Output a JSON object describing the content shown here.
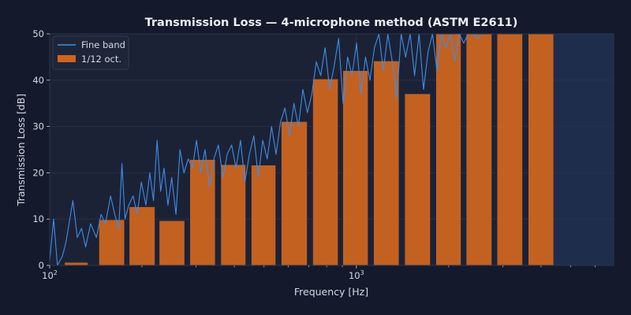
{
  "chart_data": {
    "type": "bar",
    "title": "Transmission Loss — 4-microphone method (ASTM E2611)",
    "xlabel": "Frequency [Hz]",
    "ylabel": "Transmission Loss [dB]",
    "x_scale": "log",
    "xlim": [
      100,
      6900
    ],
    "ylim": [
      0,
      50
    ],
    "x_ticks": [
      {
        "value": 100,
        "base": "10",
        "exp": "2"
      },
      {
        "value": 1000,
        "base": "10",
        "exp": "3"
      }
    ],
    "y_ticks": [
      0,
      10,
      20,
      30,
      40,
      50
    ],
    "grid": true,
    "legend_position": "top-left",
    "legend": [
      "Fine band",
      "1/12 oct."
    ],
    "series": [
      {
        "name": "1/12 oct.",
        "color": "#ce6520",
        "bars": [
          {
            "from": 112,
            "to": 133,
            "value": 0.6
          },
          {
            "from": 145,
            "to": 175,
            "value": 9.8
          },
          {
            "from": 182,
            "to": 220,
            "value": 12.6
          },
          {
            "from": 228,
            "to": 275,
            "value": 9.6
          },
          {
            "from": 287,
            "to": 346,
            "value": 22.8
          },
          {
            "from": 362,
            "to": 435,
            "value": 21.7
          },
          {
            "from": 455,
            "to": 545,
            "value": 21.6
          },
          {
            "from": 570,
            "to": 690,
            "value": 31.0
          },
          {
            "from": 722,
            "to": 870,
            "value": 40.2
          },
          {
            "from": 905,
            "to": 1090,
            "value": 42.0
          },
          {
            "from": 1140,
            "to": 1375,
            "value": 44.1
          },
          {
            "from": 1440,
            "to": 1740,
            "value": 37.0
          },
          {
            "from": 1820,
            "to": 2190,
            "value": 50.0
          },
          {
            "from": 2285,
            "to": 2760,
            "value": 50.0
          },
          {
            "from": 2880,
            "to": 3475,
            "value": 50.0
          },
          {
            "from": 3640,
            "to": 4390,
            "value": 50.0
          }
        ]
      },
      {
        "name": "Fine band",
        "color": "#3d8ee8",
        "points": [
          [
            100,
            1
          ],
          [
            103,
            10
          ],
          [
            106,
            0
          ],
          [
            110,
            2
          ],
          [
            113,
            5
          ],
          [
            117,
            11
          ],
          [
            119,
            14
          ],
          [
            123,
            6
          ],
          [
            127,
            8
          ],
          [
            131,
            4
          ],
          [
            136,
            9
          ],
          [
            142,
            6
          ],
          [
            147,
            11
          ],
          [
            152,
            9
          ],
          [
            158,
            15
          ],
          [
            163,
            11
          ],
          [
            168,
            8
          ],
          [
            172,
            22
          ],
          [
            176,
            10
          ],
          [
            181,
            13
          ],
          [
            187,
            15
          ],
          [
            193,
            11
          ],
          [
            199,
            18
          ],
          [
            206,
            13
          ],
          [
            212,
            20
          ],
          [
            218,
            14
          ],
          [
            224,
            27
          ],
          [
            230,
            16
          ],
          [
            236,
            21
          ],
          [
            243,
            13
          ],
          [
            250,
            19
          ],
          [
            258,
            11
          ],
          [
            266,
            25
          ],
          [
            274,
            20
          ],
          [
            283,
            23
          ],
          [
            292,
            21
          ],
          [
            301,
            27
          ],
          [
            311,
            20
          ],
          [
            321,
            25
          ],
          [
            332,
            17
          ],
          [
            343,
            23
          ],
          [
            355,
            26
          ],
          [
            367,
            19
          ],
          [
            379,
            24
          ],
          [
            392,
            26
          ],
          [
            405,
            21
          ],
          [
            419,
            27
          ],
          [
            433,
            18
          ],
          [
            448,
            24
          ],
          [
            463,
            28
          ],
          [
            479,
            19
          ],
          [
            495,
            27
          ],
          [
            512,
            23
          ],
          [
            529,
            30
          ],
          [
            547,
            24
          ],
          [
            566,
            31
          ],
          [
            585,
            34
          ],
          [
            605,
            28
          ],
          [
            626,
            35
          ],
          [
            647,
            30
          ],
          [
            669,
            38
          ],
          [
            692,
            33
          ],
          [
            716,
            37
          ],
          [
            740,
            44
          ],
          [
            765,
            41
          ],
          [
            791,
            47
          ],
          [
            818,
            38
          ],
          [
            846,
            43
          ],
          [
            875,
            49
          ],
          [
            905,
            35
          ],
          [
            936,
            45
          ],
          [
            968,
            41
          ],
          [
            1001,
            48
          ],
          [
            1035,
            37
          ],
          [
            1071,
            45
          ],
          [
            1107,
            40
          ],
          [
            1145,
            47
          ],
          [
            1184,
            50
          ],
          [
            1224,
            42
          ],
          [
            1266,
            50
          ],
          [
            1309,
            44
          ],
          [
            1354,
            36
          ],
          [
            1400,
            50
          ],
          [
            1448,
            45
          ],
          [
            1497,
            50
          ],
          [
            1548,
            41
          ],
          [
            1601,
            50
          ],
          [
            1656,
            38
          ],
          [
            1712,
            46
          ],
          [
            1771,
            50
          ],
          [
            1831,
            42
          ],
          [
            1893,
            50
          ],
          [
            1958,
            47
          ],
          [
            2025,
            50
          ],
          [
            2094,
            44
          ],
          [
            2165,
            50
          ],
          [
            2239,
            48
          ],
          [
            2316,
            50
          ],
          [
            2395,
            50
          ],
          [
            2476,
            49
          ],
          [
            2561,
            50
          ],
          [
            2648,
            50
          ]
        ]
      }
    ]
  }
}
